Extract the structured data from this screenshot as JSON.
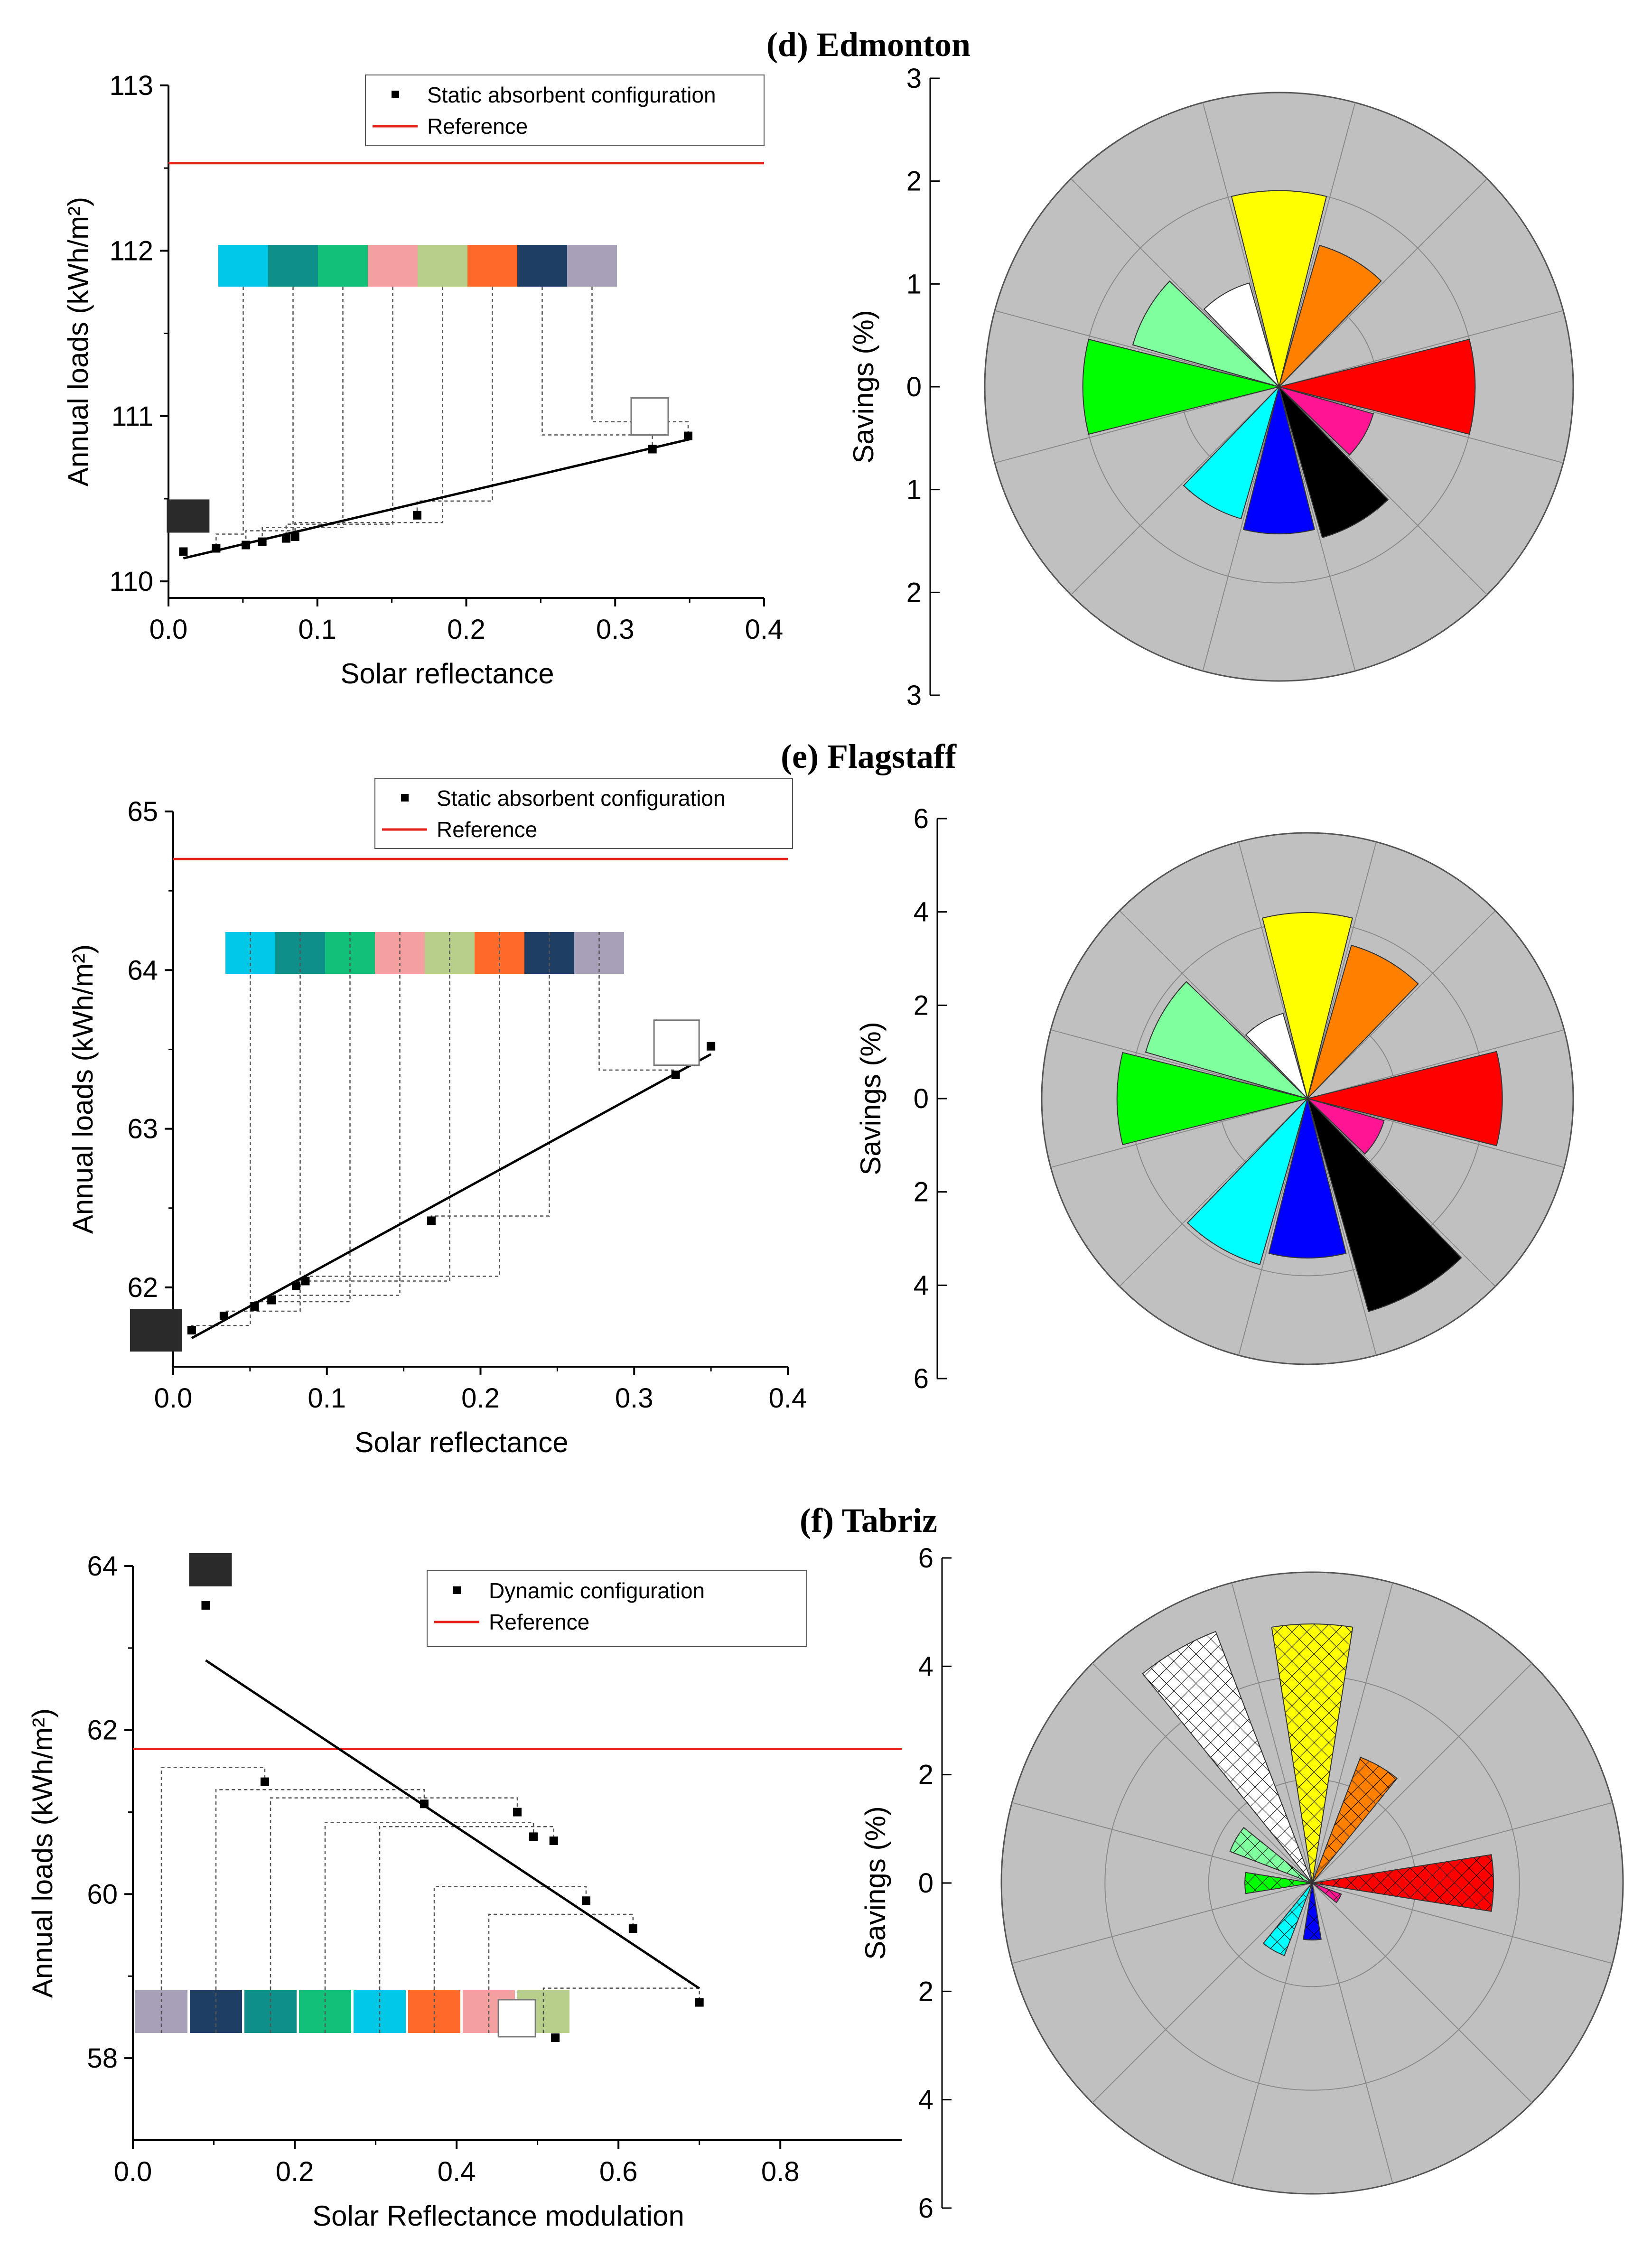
{
  "chart_data": [
    {
      "panel": "d-scatter",
      "type": "scatter",
      "title": "(d) Edmonton",
      "xlabel": "Solar reflectance",
      "ylabel": "Annual loads (kWh/m²)",
      "xlim": [
        0.0,
        0.4
      ],
      "ylim": [
        109.9,
        113.0
      ],
      "xticks": [
        "0.0",
        "0.1",
        "0.2",
        "0.3",
        "0.4"
      ],
      "yticks": [
        "110",
        "111",
        "112",
        "113"
      ],
      "legend": {
        "series": "Static absorbent configuration",
        "reference": "Reference"
      },
      "reference": 112.53,
      "points": [
        {
          "x": 0.01,
          "y": 110.18
        },
        {
          "x": 0.032,
          "y": 110.2
        },
        {
          "x": 0.052,
          "y": 110.22
        },
        {
          "x": 0.063,
          "y": 110.24
        },
        {
          "x": 0.079,
          "y": 110.26
        },
        {
          "x": 0.085,
          "y": 110.27
        },
        {
          "x": 0.167,
          "y": 110.4
        },
        {
          "x": 0.325,
          "y": 110.8
        },
        {
          "x": 0.349,
          "y": 110.88
        }
      ],
      "fit": [
        {
          "x": 0.01,
          "y": 110.14
        },
        {
          "x": 0.35,
          "y": 110.86
        }
      ],
      "swatches": [
        "#00c8e6",
        "#0f8f8a",
        "#12c07a",
        "#f4a0a0",
        "#b7cf8a",
        "#ff6a2a",
        "#1e3f63",
        "#a8a0b8"
      ]
    },
    {
      "panel": "d-polar",
      "type": "polar-bar",
      "ylabel": "Savings (%)",
      "radial_ticks": [
        "3",
        "2",
        "1",
        "0",
        "1",
        "2",
        "3"
      ],
      "rmax": 3,
      "sectors": [
        {
          "angle": 0,
          "value": 2.0,
          "color": "#ffff00"
        },
        {
          "angle": 30,
          "value": 1.5,
          "color": "#ff7f00"
        },
        {
          "angle": 60,
          "value": 0.0,
          "color": "#c0c0c0"
        },
        {
          "angle": 90,
          "value": 2.0,
          "color": "#ff0000"
        },
        {
          "angle": 120,
          "value": 1.0,
          "color": "#ff1493"
        },
        {
          "angle": 150,
          "value": 1.6,
          "color": "#000000"
        },
        {
          "angle": 180,
          "value": 1.5,
          "color": "#0000ff"
        },
        {
          "angle": 210,
          "value": 1.4,
          "color": "#00ffff"
        },
        {
          "angle": 240,
          "value": 0.0,
          "color": "#c0c0c0"
        },
        {
          "angle": 270,
          "value": 2.0,
          "color": "#00ff00"
        },
        {
          "angle": 300,
          "value": 1.55,
          "color": "#80ff9f"
        },
        {
          "angle": 330,
          "value": 1.1,
          "color": "#ffffff"
        }
      ]
    },
    {
      "panel": "e-scatter",
      "type": "scatter",
      "title": "(e) Flagstaff",
      "xlabel": "Solar reflectance",
      "ylabel": "Annual loads (kWh/m²)",
      "xlim": [
        0.0,
        0.4
      ],
      "ylim": [
        61.5,
        65.0
      ],
      "xticks": [
        "0.0",
        "0.1",
        "0.2",
        "0.3",
        "0.4"
      ],
      "yticks": [
        "62",
        "63",
        "64",
        "65"
      ],
      "legend": {
        "series": "Static absorbent configuration",
        "reference": "Reference"
      },
      "reference": 64.7,
      "points": [
        {
          "x": 0.012,
          "y": 61.73
        },
        {
          "x": 0.033,
          "y": 61.82
        },
        {
          "x": 0.053,
          "y": 61.88
        },
        {
          "x": 0.064,
          "y": 61.92
        },
        {
          "x": 0.08,
          "y": 62.01
        },
        {
          "x": 0.086,
          "y": 62.04
        },
        {
          "x": 0.168,
          "y": 62.42
        },
        {
          "x": 0.327,
          "y": 63.34
        },
        {
          "x": 0.35,
          "y": 63.52
        }
      ],
      "fit": [
        {
          "x": 0.012,
          "y": 61.68
        },
        {
          "x": 0.35,
          "y": 63.47
        }
      ],
      "swatches": [
        "#00c8e6",
        "#0f8f8a",
        "#12c07a",
        "#f4a0a0",
        "#b7cf8a",
        "#ff6a2a",
        "#1e3f63",
        "#a8a0b8"
      ]
    },
    {
      "panel": "e-polar",
      "type": "polar-bar",
      "ylabel": "Savings (%)",
      "radial_ticks": [
        "6",
        "4",
        "2",
        "0",
        "2",
        "4",
        "6"
      ],
      "rmax": 6,
      "sectors": [
        {
          "angle": 0,
          "value": 4.2,
          "color": "#ffff00"
        },
        {
          "angle": 30,
          "value": 3.6,
          "color": "#ff7f00"
        },
        {
          "angle": 60,
          "value": 0.0,
          "color": "#c0c0c0"
        },
        {
          "angle": 90,
          "value": 4.4,
          "color": "#ff0000"
        },
        {
          "angle": 120,
          "value": 1.8,
          "color": "#ff1493"
        },
        {
          "angle": 150,
          "value": 5.0,
          "color": "#000000"
        },
        {
          "angle": 180,
          "value": 3.6,
          "color": "#0000ff"
        },
        {
          "angle": 210,
          "value": 3.9,
          "color": "#00ffff"
        },
        {
          "angle": 240,
          "value": 0.0,
          "color": "#c0c0c0"
        },
        {
          "angle": 270,
          "value": 4.3,
          "color": "#00ff00"
        },
        {
          "angle": 300,
          "value": 3.8,
          "color": "#80ff9f"
        },
        {
          "angle": 330,
          "value": 2.0,
          "color": "#ffffff"
        }
      ]
    },
    {
      "panel": "f-scatter",
      "type": "scatter",
      "title": "(f) Tabriz",
      "xlabel": "Solar Reflectance modulation",
      "ylabel": "Annual loads (kWh/m²)",
      "xlim": [
        0.0,
        0.95
      ],
      "ylim": [
        57.0,
        64.0
      ],
      "xticks": [
        "0.0",
        "0.2",
        "0.4",
        "0.6",
        "0.8"
      ],
      "yticks": [
        "58",
        "60",
        "62",
        "64"
      ],
      "legend": {
        "series": "Dynamic configuration",
        "reference": "Reference"
      },
      "reference": 61.77,
      "points": [
        {
          "x": 0.09,
          "y": 63.52
        },
        {
          "x": 0.163,
          "y": 61.37
        },
        {
          "x": 0.36,
          "y": 61.1
        },
        {
          "x": 0.475,
          "y": 61.0
        },
        {
          "x": 0.495,
          "y": 60.7
        },
        {
          "x": 0.52,
          "y": 60.65
        },
        {
          "x": 0.56,
          "y": 59.92
        },
        {
          "x": 0.618,
          "y": 59.58
        },
        {
          "x": 0.7,
          "y": 58.68
        },
        {
          "x": 0.522,
          "y": 58.25
        }
      ],
      "fit": [
        {
          "x": 0.09,
          "y": 62.85
        },
        {
          "x": 0.7,
          "y": 58.85
        }
      ],
      "swatches": [
        "#a8a0b8",
        "#1e3f63",
        "#0f8f8a",
        "#12c07a",
        "#00c8e6",
        "#ff6a2a",
        "#f4a0a0",
        "#b7cf8a"
      ]
    },
    {
      "panel": "f-polar",
      "type": "polar-bar",
      "ylabel": "Savings (%)",
      "radial_ticks": [
        "6",
        "4",
        "2",
        "0",
        "2",
        "4",
        "6"
      ],
      "rmax": 6,
      "hatched": true,
      "sectors": [
        {
          "angle": 0,
          "value": 5.0,
          "color": "#ffff00"
        },
        {
          "angle": 30,
          "value": 2.6,
          "color": "#ff7f00"
        },
        {
          "angle": 60,
          "value": 0.0,
          "color": "#c0c0c0"
        },
        {
          "angle": 90,
          "value": 3.5,
          "color": "#ff0000"
        },
        {
          "angle": 120,
          "value": 0.6,
          "color": "#ff1493"
        },
        {
          "angle": 150,
          "value": 0.0,
          "color": "#000000"
        },
        {
          "angle": 180,
          "value": 1.1,
          "color": "#0000ff"
        },
        {
          "angle": 210,
          "value": 1.5,
          "color": "#00ffff"
        },
        {
          "angle": 240,
          "value": 0.0,
          "color": "#c0c0c0"
        },
        {
          "angle": 270,
          "value": 1.3,
          "color": "#00ff00"
        },
        {
          "angle": 300,
          "value": 1.7,
          "color": "#80ff9f"
        },
        {
          "angle": 330,
          "value": 5.2,
          "color": "#ffffff"
        }
      ]
    }
  ]
}
